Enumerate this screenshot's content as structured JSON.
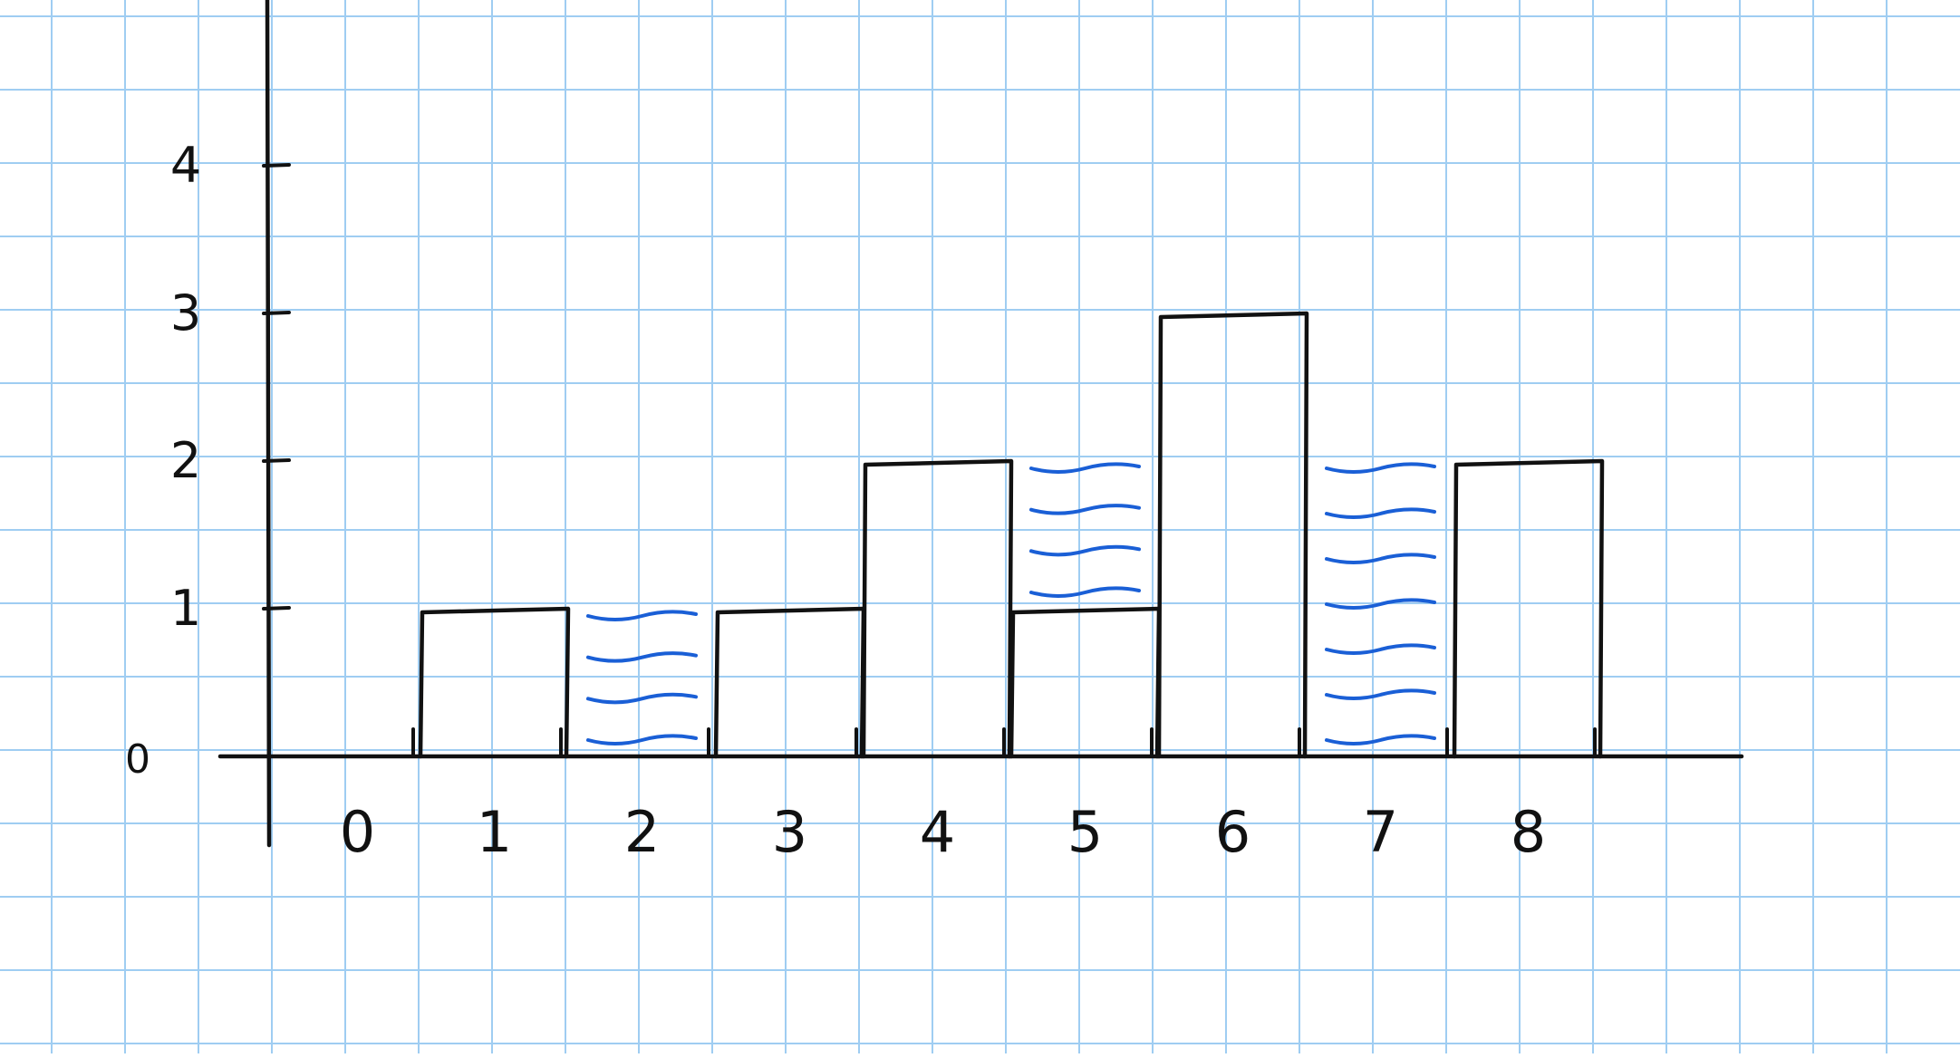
{
  "chart_data": {
    "type": "bar",
    "categories": [
      "0",
      "1",
      "2",
      "3",
      "4",
      "5",
      "6",
      "7",
      "8"
    ],
    "values": [
      0,
      1,
      0,
      1,
      2,
      1,
      3,
      0,
      2
    ],
    "water": [
      0,
      0,
      1,
      0,
      0,
      1,
      0,
      2,
      0
    ],
    "y_ticks": [
      "0",
      "1",
      "2",
      "3",
      "4"
    ],
    "ylim": [
      0,
      4
    ],
    "title": "",
    "xlabel": "",
    "ylabel": "",
    "grid": true,
    "colors": {
      "grid": "#9fcdf2",
      "ink": "#111111",
      "water": "#1a5fd6",
      "paper": "#ffffff"
    }
  }
}
